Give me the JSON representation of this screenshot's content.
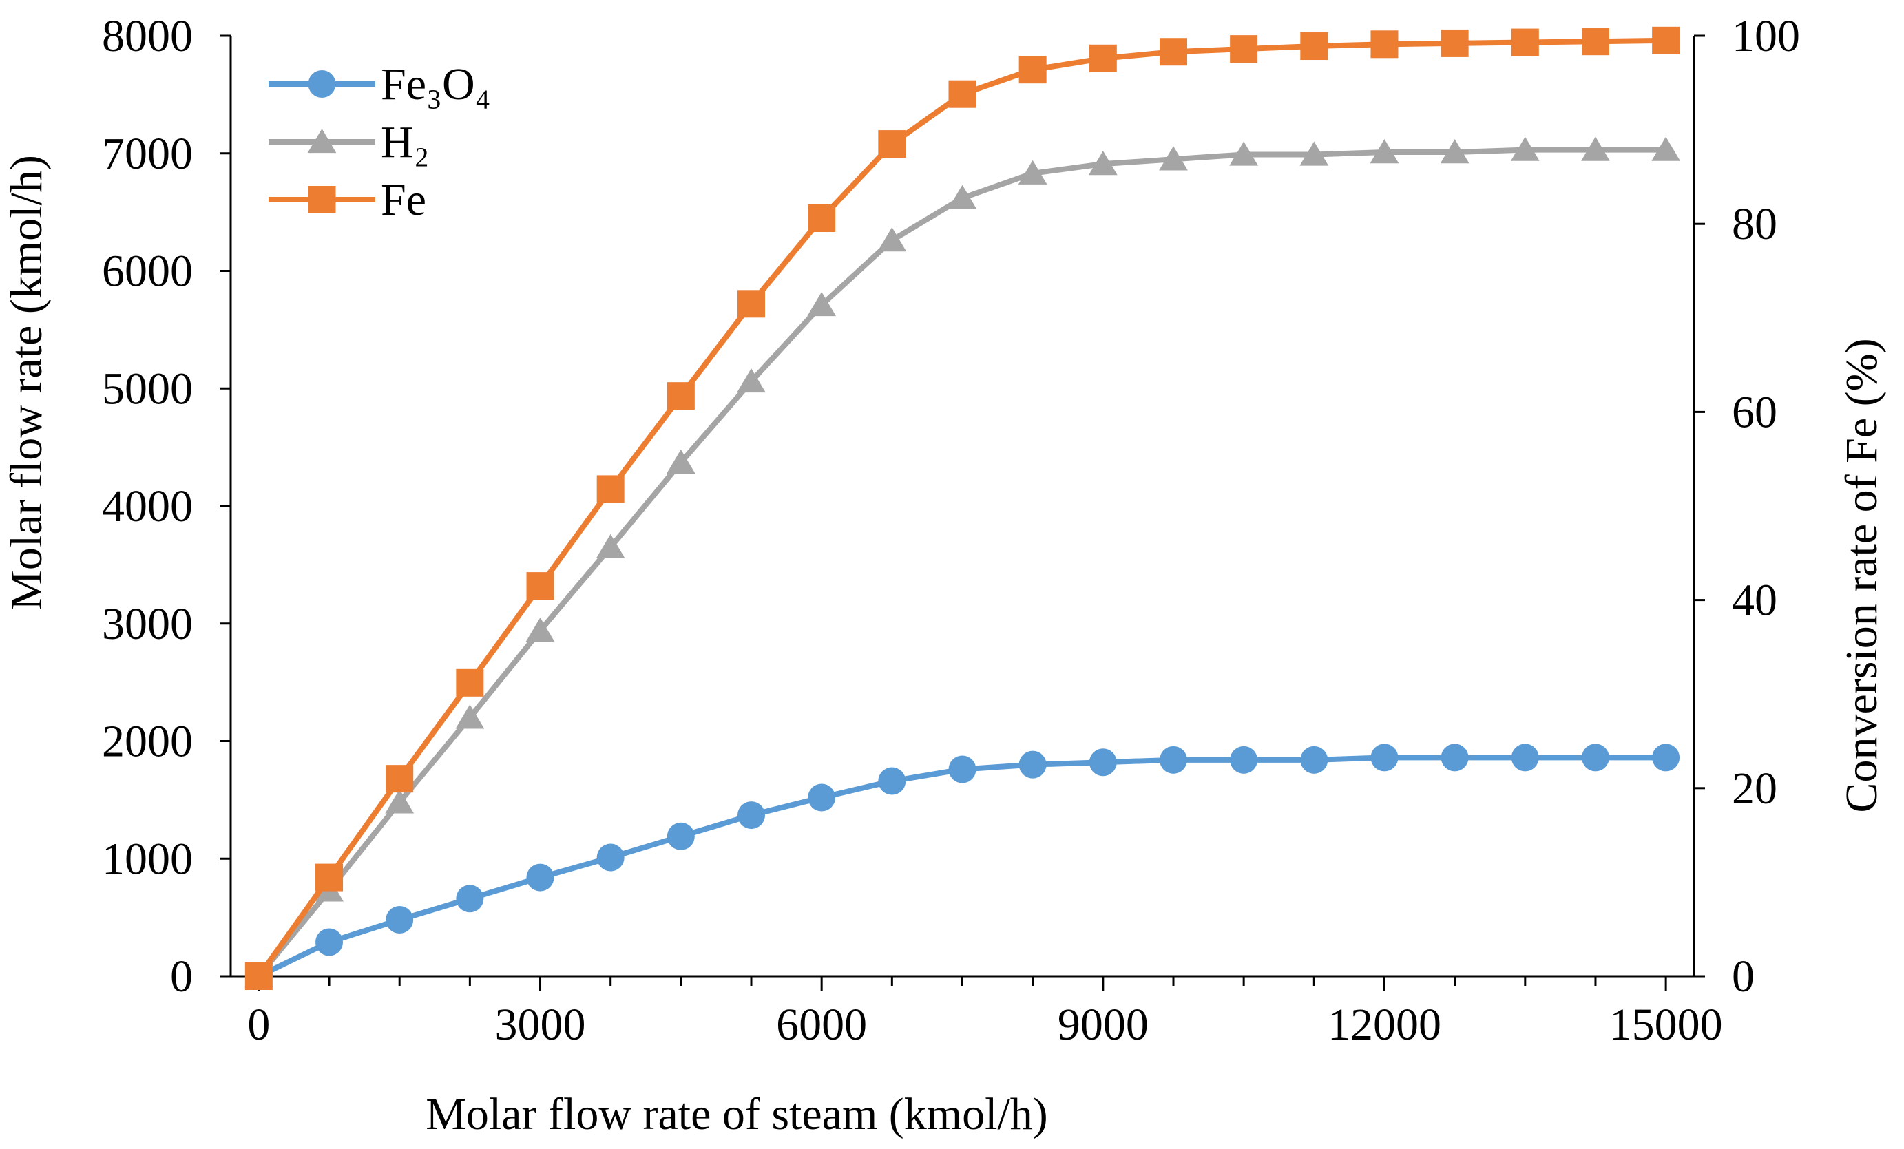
{
  "chart_data": {
    "type": "line",
    "xlabel": "Molar flow rate of steam (kmol/h)",
    "ylabel": "Molar flow rate (kmol/h)",
    "y2label": "Conversion rate of Fe (%)",
    "xlim": [
      -300,
      15300
    ],
    "ylim": [
      0,
      8000
    ],
    "y2lim": [
      0,
      100
    ],
    "x_ticks": [
      0,
      3000,
      6000,
      9000,
      12000,
      15000
    ],
    "x_tick_labels": [
      "0",
      "3000",
      "6000",
      "9000",
      "12000",
      "15000"
    ],
    "x_minor_step": 750,
    "y_ticks": [
      0,
      1000,
      2000,
      3000,
      4000,
      5000,
      6000,
      7000,
      8000
    ],
    "y_tick_labels": [
      "0",
      "1000",
      "2000",
      "3000",
      "4000",
      "5000",
      "6000",
      "7000",
      "8000"
    ],
    "y2_ticks": [
      0,
      20,
      40,
      60,
      80,
      100
    ],
    "y2_tick_labels": [
      "0",
      "20",
      "40",
      "60",
      "80",
      "100"
    ],
    "grid": false,
    "legend_position": "top-left",
    "x": [
      0,
      750,
      1500,
      2250,
      3000,
      3750,
      4500,
      5250,
      6000,
      6750,
      7500,
      8250,
      9000,
      9750,
      10500,
      11250,
      12000,
      12750,
      13500,
      14250,
      15000
    ],
    "series": [
      {
        "name": "Fe₃O₄",
        "axis": "left",
        "marker": "circle",
        "color": "#5B9BD5",
        "values": [
          0,
          290,
          480,
          660,
          840,
          1010,
          1190,
          1370,
          1520,
          1660,
          1760,
          1800,
          1820,
          1840,
          1840,
          1840,
          1860,
          1860,
          1860,
          1860,
          1860
        ]
      },
      {
        "name": "H₂",
        "axis": "left",
        "marker": "triangle",
        "color": "#A5A5A5",
        "values": [
          0,
          730,
          1480,
          2200,
          2940,
          3650,
          4370,
          5060,
          5710,
          6260,
          6620,
          6830,
          6910,
          6950,
          6990,
          6990,
          7010,
          7010,
          7030,
          7030,
          7030
        ]
      },
      {
        "name": "Fe",
        "axis": "right",
        "marker": "square",
        "color": "#ED7D31",
        "values": [
          0,
          10.5,
          21,
          31.2,
          41.5,
          51.8,
          61.7,
          71.5,
          80.6,
          88.5,
          93.8,
          96.4,
          97.6,
          98.3,
          98.6,
          98.9,
          99.1,
          99.2,
          99.3,
          99.4,
          99.5
        ]
      }
    ]
  }
}
